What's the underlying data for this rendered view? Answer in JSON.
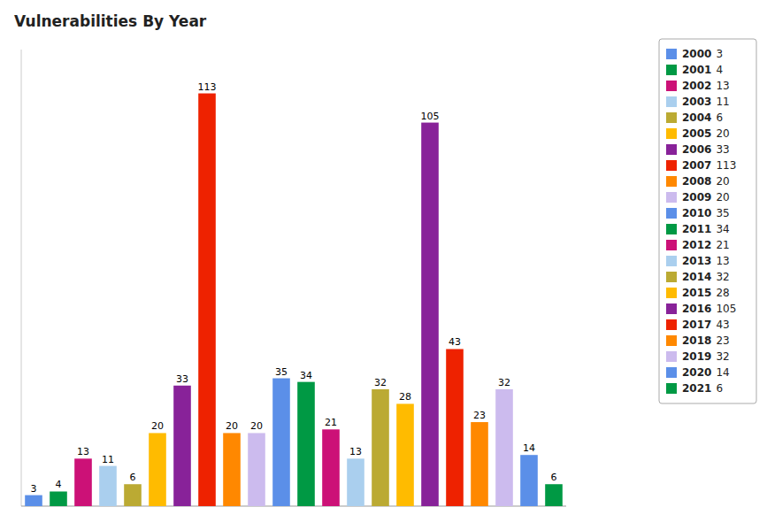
{
  "chart_data": {
    "type": "bar",
    "title": "Vulnerabilities By Year",
    "categories": [
      "2000",
      "2001",
      "2002",
      "2003",
      "2004",
      "2005",
      "2006",
      "2007",
      "2008",
      "2009",
      "2010",
      "2011",
      "2012",
      "2013",
      "2014",
      "2015",
      "2016",
      "2017",
      "2018",
      "2019",
      "2020",
      "2021"
    ],
    "values": [
      3,
      4,
      13,
      11,
      6,
      20,
      33,
      113,
      20,
      20,
      35,
      34,
      21,
      13,
      32,
      28,
      105,
      43,
      23,
      32,
      14,
      6
    ],
    "colors": [
      "#5B8FE8",
      "#009944",
      "#CC1177",
      "#AACFEE",
      "#BBAA33",
      "#FFBB00",
      "#882299",
      "#EE2200",
      "#FF8800",
      "#CCBBEE",
      "#5B8FE8",
      "#009944",
      "#CC1177",
      "#AACFEE",
      "#BBAA33",
      "#FFBB00",
      "#882299",
      "#EE2200",
      "#FF8800",
      "#CCBBEE",
      "#5B8FE8",
      "#009944"
    ],
    "ylim": [
      0,
      125
    ],
    "grid": false,
    "legend": "upper right",
    "data_labels": true,
    "tick_labels": false
  }
}
